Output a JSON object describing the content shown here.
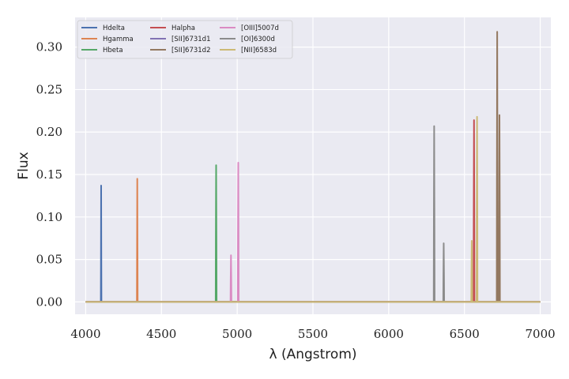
{
  "chart_data": {
    "type": "line",
    "title": "",
    "xlabel": "λ (Angstrom)",
    "ylabel": "Flux",
    "xlim": [
      3930,
      7070
    ],
    "ylim": [
      -0.0145,
      0.335
    ],
    "xticks": [
      4000,
      4500,
      5000,
      5500,
      6000,
      6500,
      7000
    ],
    "xtick_labels": [
      "4000",
      "4500",
      "5000",
      "5500",
      "6000",
      "6500",
      "7000"
    ],
    "yticks": [
      0.0,
      0.05,
      0.1,
      0.15,
      0.2,
      0.25,
      0.3
    ],
    "ytick_labels": [
      "0.00",
      "0.05",
      "0.10",
      "0.15",
      "0.20",
      "0.25",
      "0.30"
    ],
    "grid": true,
    "legend_position": "top-left",
    "legend_columns": 3,
    "baseline_x": [
      4000,
      7000
    ],
    "series": [
      {
        "name": "Hdelta",
        "color": "#4c72b0",
        "x": [
          4000,
          4100,
          4101,
          4102,
          4103,
          4104,
          7000
        ],
        "y": [
          0,
          0,
          0.06,
          0.137,
          0.06,
          0,
          0
        ]
      },
      {
        "name": "Hgamma",
        "color": "#dd8452",
        "x": [
          4000,
          4338,
          4339,
          4340.5,
          4342,
          4343,
          7000
        ],
        "y": [
          0,
          0,
          0.06,
          0.145,
          0.06,
          0,
          0
        ]
      },
      {
        "name": "Hbeta",
        "color": "#55a868",
        "x": [
          4000,
          4858,
          4859,
          4861,
          4863,
          4864,
          7000
        ],
        "y": [
          0,
          0,
          0.07,
          0.161,
          0.07,
          0,
          0
        ]
      },
      {
        "name": "Halpha",
        "color": "#c44e52",
        "x": [
          4000,
          6560,
          6561,
          6563,
          6565,
          6566,
          7000
        ],
        "y": [
          0,
          0,
          0.09,
          0.214,
          0.09,
          0,
          0
        ]
      },
      {
        "name": "[SII]6731d1",
        "color": "#8172b3",
        "x": [
          4000,
          7000
        ],
        "y": [
          0,
          0
        ]
      },
      {
        "name": "[SII]6731d2",
        "color": "#937860",
        "x": [
          4000,
          6713,
          6714,
          6716,
          6718,
          6719,
          6728,
          6729,
          6731,
          6733,
          6734,
          7000
        ],
        "y": [
          0,
          0,
          0.14,
          0.318,
          0.14,
          0,
          0,
          0.1,
          0.22,
          0.1,
          0,
          0
        ]
      },
      {
        "name": "[OIII]5007d",
        "color": "#da8bc3",
        "x": [
          4000,
          4956,
          4957,
          4959,
          4961,
          4962,
          5004,
          5005,
          5007,
          5009,
          5010,
          7000
        ],
        "y": [
          0,
          0,
          0.025,
          0.055,
          0.025,
          0,
          0,
          0.075,
          0.164,
          0.075,
          0,
          0
        ]
      },
      {
        "name": "[OI]6300d",
        "color": "#8c8c8c",
        "x": [
          4000,
          6297,
          6298,
          6300,
          6302,
          6303,
          6360,
          6361,
          6363,
          6365,
          6366,
          7000
        ],
        "y": [
          0,
          0,
          0.09,
          0.207,
          0.09,
          0,
          0,
          0.03,
          0.069,
          0.03,
          0,
          0
        ]
      },
      {
        "name": "[NII]6583d",
        "color": "#ccb974",
        "x": [
          4000,
          6545,
          6546,
          6548,
          6550,
          6551,
          6580,
          6581,
          6583,
          6585,
          6586,
          7000
        ],
        "y": [
          0,
          0,
          0.03,
          0.072,
          0.03,
          0,
          0,
          0.1,
          0.218,
          0.1,
          0,
          0
        ]
      }
    ]
  }
}
